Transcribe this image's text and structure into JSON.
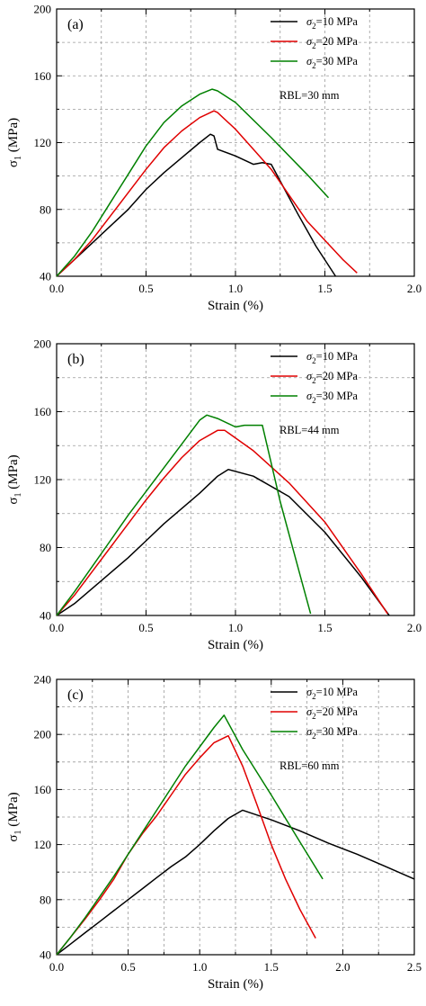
{
  "chart_data": [
    {
      "type": "line",
      "panel_label": "(a)",
      "xlabel": "Strain (%)",
      "ylabel": "σ",
      "ylabel_subscript": "1",
      "ylabel_unit": " (MPa)",
      "xlim": [
        0,
        2.0
      ],
      "ylim": [
        40,
        200
      ],
      "xticks": [
        "0.0",
        "0.5",
        "1.0",
        "1.5",
        "2.0"
      ],
      "yticks": [
        "40",
        "80",
        "120",
        "160",
        "200"
      ],
      "xtick_values": [
        0,
        0.5,
        1.0,
        1.5,
        2.0
      ],
      "ytick_values": [
        40,
        80,
        120,
        160,
        200
      ],
      "grid": true,
      "legend_position": "top-right",
      "annotation": "RBL=30 mm",
      "series": [
        {
          "name_prefix": "σ",
          "name_sub": "2",
          "name_suffix": "=10 MPa",
          "color": "#000000",
          "x": [
            0,
            0.1,
            0.2,
            0.3,
            0.4,
            0.5,
            0.6,
            0.7,
            0.8,
            0.86,
            0.88,
            0.9,
            1.0,
            1.1,
            1.15,
            1.2,
            1.35,
            1.45,
            1.56
          ],
          "y": [
            40,
            50,
            60,
            70,
            80,
            92,
            102,
            111,
            120,
            125,
            124,
            116,
            112,
            107,
            108,
            107,
            77,
            58,
            40
          ]
        },
        {
          "name_prefix": "σ",
          "name_sub": "2",
          "name_suffix": "=20 MPa",
          "color": "#e00000",
          "x": [
            0,
            0.1,
            0.2,
            0.3,
            0.4,
            0.5,
            0.6,
            0.7,
            0.8,
            0.88,
            0.9,
            1.0,
            1.1,
            1.2,
            1.4,
            1.6,
            1.68
          ],
          "y": [
            40,
            50,
            62,
            76,
            90,
            104,
            117,
            127,
            135,
            139,
            138,
            128,
            116,
            104,
            73,
            50,
            42
          ]
        },
        {
          "name_prefix": "σ",
          "name_sub": "2",
          "name_suffix": "=30 MPa",
          "color": "#008000",
          "x": [
            0,
            0.1,
            0.2,
            0.3,
            0.4,
            0.5,
            0.6,
            0.7,
            0.8,
            0.87,
            0.9,
            1.0,
            1.2,
            1.4,
            1.52
          ],
          "y": [
            40,
            52,
            67,
            84,
            101,
            118,
            132,
            142,
            149,
            152,
            151,
            144,
            123,
            101,
            87
          ]
        }
      ]
    },
    {
      "type": "line",
      "panel_label": "(b)",
      "xlabel": "Strain (%)",
      "ylabel": "σ",
      "ylabel_subscript": "1",
      "ylabel_unit": " (MPa)",
      "xlim": [
        0,
        2.0
      ],
      "ylim": [
        40,
        200
      ],
      "xticks": [
        "0.0",
        "0.5",
        "1.0",
        "1.5",
        "2.0"
      ],
      "yticks": [
        "40",
        "80",
        "120",
        "160",
        "200"
      ],
      "xtick_values": [
        0,
        0.5,
        1.0,
        1.5,
        2.0
      ],
      "ytick_values": [
        40,
        80,
        120,
        160,
        200
      ],
      "grid": true,
      "legend_position": "top-right",
      "annotation": "RBL=44 mm",
      "series": [
        {
          "name_prefix": "σ",
          "name_sub": "2",
          "name_suffix": "=10 MPa",
          "color": "#000000",
          "x": [
            0,
            0.1,
            0.2,
            0.3,
            0.4,
            0.5,
            0.6,
            0.7,
            0.8,
            0.9,
            0.96,
            1.1,
            1.3,
            1.5,
            1.7,
            1.86
          ],
          "y": [
            40,
            47,
            56,
            65,
            74,
            84,
            94,
            103,
            112,
            122,
            126,
            122,
            110,
            89,
            63,
            40
          ]
        },
        {
          "name_prefix": "σ",
          "name_sub": "2",
          "name_suffix": "=20 MPa",
          "color": "#e00000",
          "x": [
            0,
            0.1,
            0.2,
            0.3,
            0.4,
            0.5,
            0.6,
            0.7,
            0.8,
            0.9,
            0.94,
            1.1,
            1.3,
            1.5,
            1.7,
            1.85
          ],
          "y": [
            40,
            52,
            66,
            80,
            94,
            108,
            121,
            133,
            143,
            149,
            149,
            137,
            118,
            95,
            65,
            41
          ]
        },
        {
          "name_prefix": "σ",
          "name_sub": "2",
          "name_suffix": "=30 MPa",
          "color": "#008000",
          "x": [
            0,
            0.1,
            0.2,
            0.3,
            0.4,
            0.5,
            0.6,
            0.7,
            0.8,
            0.84,
            0.9,
            1.0,
            1.05,
            1.15,
            1.25,
            1.35,
            1.42
          ],
          "y": [
            40,
            54,
            69,
            84,
            99,
            113,
            127,
            141,
            155,
            158,
            156,
            151,
            152,
            152,
            107,
            68,
            41
          ]
        }
      ]
    },
    {
      "type": "line",
      "panel_label": "(c)",
      "xlabel": "Strain (%)",
      "ylabel": "σ",
      "ylabel_subscript": "1",
      "ylabel_unit": " (MPa)",
      "xlim": [
        0,
        2.5
      ],
      "ylim": [
        40,
        240
      ],
      "xticks": [
        "0.0",
        "0.5",
        "1.0",
        "1.5",
        "2.0",
        "2.5"
      ],
      "yticks": [
        "40",
        "80",
        "120",
        "160",
        "200",
        "240"
      ],
      "xtick_values": [
        0,
        0.5,
        1.0,
        1.5,
        2.0,
        2.5
      ],
      "ytick_values": [
        40,
        80,
        120,
        160,
        200,
        240
      ],
      "grid": true,
      "legend_position": "top-right",
      "annotation": "RBL=60 mm",
      "series": [
        {
          "name_prefix": "σ",
          "name_sub": "2",
          "name_suffix": "=10 MPa",
          "color": "#000000",
          "x": [
            0,
            0.1,
            0.2,
            0.3,
            0.4,
            0.5,
            0.6,
            0.7,
            0.8,
            0.9,
            1.0,
            1.1,
            1.2,
            1.3,
            1.5,
            1.7,
            1.9,
            2.1,
            2.3,
            2.5
          ],
          "y": [
            40,
            48,
            56,
            64,
            72,
            80,
            88,
            96,
            104,
            111,
            120,
            130,
            139,
            145,
            138,
            130,
            121,
            113,
            104,
            95
          ]
        },
        {
          "name_prefix": "σ",
          "name_sub": "2",
          "name_suffix": "=20 MPa",
          "color": "#e00000",
          "x": [
            0,
            0.1,
            0.2,
            0.3,
            0.4,
            0.5,
            0.6,
            0.7,
            0.8,
            0.9,
            1.0,
            1.1,
            1.2,
            1.3,
            1.4,
            1.5,
            1.6,
            1.7,
            1.81
          ],
          "y": [
            40,
            53,
            66,
            80,
            95,
            113,
            128,
            141,
            156,
            171,
            183,
            194,
            199,
            177,
            149,
            120,
            95,
            73,
            52
          ]
        },
        {
          "name_prefix": "σ",
          "name_sub": "2",
          "name_suffix": "=30 MPa",
          "color": "#008000",
          "x": [
            0,
            0.1,
            0.2,
            0.3,
            0.4,
            0.5,
            0.6,
            0.7,
            0.8,
            0.9,
            1.0,
            1.1,
            1.17,
            1.3,
            1.5,
            1.7,
            1.86
          ],
          "y": [
            40,
            53,
            67,
            82,
            97,
            113,
            129,
            145,
            161,
            177,
            191,
            205,
            214,
            189,
            156,
            122,
            95
          ]
        }
      ]
    }
  ]
}
